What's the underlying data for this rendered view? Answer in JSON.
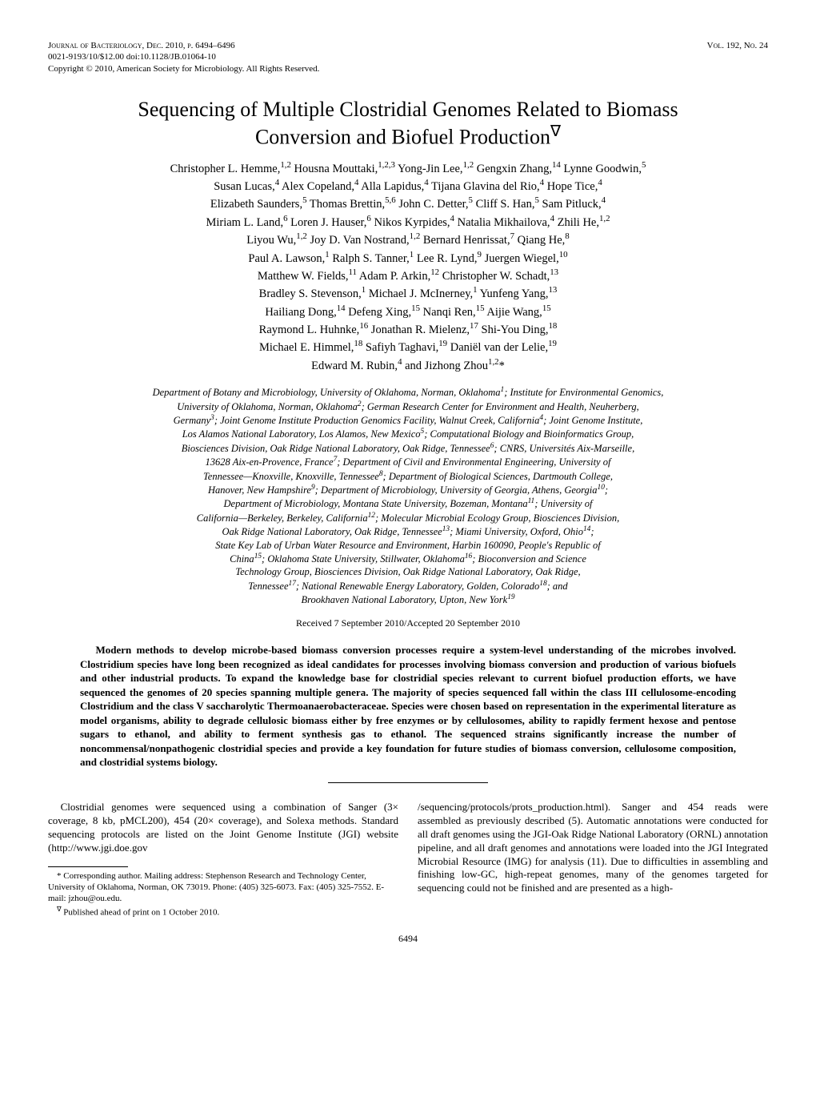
{
  "header": {
    "journal_line": "Journal of Bacteriology, Dec. 2010, p. 6494–6496",
    "vol_line": "Vol. 192, No. 24",
    "issn_doi": "0021-9193/10/$12.00   doi:10.1128/JB.01064-10",
    "copyright": "Copyright © 2010, American Society for Microbiology. All Rights Reserved."
  },
  "title_lines": {
    "l1": "Sequencing of Multiple Clostridial Genomes Related to Biomass",
    "l2": "Conversion and Biofuel Production",
    "nabla": "∇"
  },
  "authors_html": "Christopher L. Hemme,<sup>1,2</sup> Housna Mouttaki,<sup>1,2,3</sup> Yong-Jin Lee,<sup>1,2</sup> Gengxin Zhang,<sup>14</sup> Lynne Goodwin,<sup>5</sup><br>Susan Lucas,<sup>4</sup> Alex Copeland,<sup>4</sup> Alla Lapidus,<sup>4</sup> Tijana Glavina del Rio,<sup>4</sup> Hope Tice,<sup>4</sup><br>Elizabeth Saunders,<sup>5</sup> Thomas Brettin,<sup>5,6</sup> John C. Detter,<sup>5</sup> Cliff S. Han,<sup>5</sup> Sam Pitluck,<sup>4</sup><br>Miriam L. Land,<sup>6</sup> Loren J. Hauser,<sup>6</sup> Nikos Kyrpides,<sup>4</sup> Natalia Mikhailova,<sup>4</sup> Zhili He,<sup>1,2</sup><br>Liyou Wu,<sup>1,2</sup> Joy D. Van Nostrand,<sup>1,2</sup> Bernard Henrissat,<sup>7</sup> Qiang He,<sup>8</sup><br>Paul A. Lawson,<sup>1</sup> Ralph S. Tanner,<sup>1</sup> Lee R. Lynd,<sup>9</sup> Juergen Wiegel,<sup>10</sup><br>Matthew W. Fields,<sup>11</sup> Adam P. Arkin,<sup>12</sup> Christopher W. Schadt,<sup>13</sup><br>Bradley S. Stevenson,<sup>1</sup> Michael J. McInerney,<sup>1</sup> Yunfeng Yang,<sup>13</sup><br>Hailiang Dong,<sup>14</sup> Defeng Xing,<sup>15</sup> Nanqi Ren,<sup>15</sup> Aijie Wang,<sup>15</sup><br>Raymond L. Huhnke,<sup>16</sup> Jonathan R. Mielenz,<sup>17</sup> Shi-You Ding,<sup>18</sup><br>Michael E. Himmel,<sup>18</sup> Safiyh Taghavi,<sup>19</sup> Daniël van der Lelie,<sup>19</sup><br>Edward M. Rubin,<sup>4</sup> and Jizhong Zhou<sup>1,2</sup>*",
  "affiliations_html": "Department of Botany and Microbiology, University of Oklahoma, Norman, Oklahoma<sup>1</sup>; Institute for Environmental Genomics,<br>University of Oklahoma, Norman, Oklahoma<sup>2</sup>; German Research Center for Environment and Health, Neuherberg,<br>Germany<sup>3</sup>; Joint Genome Institute Production Genomics Facility, Walnut Creek, California<sup>4</sup>; Joint Genome Institute,<br>Los Alamos National Laboratory, Los Alamos, New Mexico<sup>5</sup>; Computational Biology and Bioinformatics Group,<br>Biosciences Division, Oak Ridge National Laboratory, Oak Ridge, Tennessee<sup>6</sup>; CNRS, Universités Aix-Marseille,<br>13628 Aix-en-Provence, France<sup>7</sup>; Department of Civil and Environmental Engineering, University of<br>Tennessee—Knoxville, Knoxville, Tennessee<sup>8</sup>; Department of Biological Sciences, Dartmouth College,<br>Hanover, New Hampshire<sup>9</sup>; Department of Microbiology, University of Georgia, Athens, Georgia<sup>10</sup>;<br>Department of Microbiology, Montana State University, Bozeman, Montana<sup>11</sup>; University of<br>California—Berkeley, Berkeley, California<sup>12</sup>; Molecular Microbial Ecology Group, Biosciences Division,<br>Oak Ridge National Laboratory, Oak Ridge, Tennessee<sup>13</sup>; Miami University, Oxford, Ohio<sup>14</sup>;<br>State Key Lab of Urban Water Resource and Environment, Harbin 160090, People's Republic of<br>China<sup>15</sup>; Oklahoma State University, Stillwater, Oklahoma<sup>16</sup>; Bioconversion and Science<br>Technology Group, Biosciences Division, Oak Ridge National Laboratory, Oak Ridge,<br>Tennessee<sup>17</sup>; National Renewable Energy Laboratory, Golden, Colorado<sup>18</sup>; and<br>Brookhaven National Laboratory, Upton, New York<sup>19</sup>",
  "received": "Received 7 September 2010/Accepted 20 September 2010",
  "abstract": "Modern methods to develop microbe-based biomass conversion processes require a system-level understanding of the microbes involved. Clostridium species have long been recognized as ideal candidates for processes involving biomass conversion and production of various biofuels and other industrial products. To expand the knowledge base for clostridial species relevant to current biofuel production efforts, we have sequenced the genomes of 20 species spanning multiple genera. The majority of species sequenced fall within the class III cellulosome-encoding Clostridium and the class V saccharolytic Thermoanaerobacteraceae. Species were chosen based on representation in the experimental literature as model organisms, ability to degrade cellulosic biomass either by free enzymes or by cellulosomes, ability to rapidly ferment hexose and pentose sugars to ethanol, and ability to ferment synthesis gas to ethanol. The sequenced strains significantly increase the number of noncommensal/nonpathogenic clostridial species and provide a key foundation for future studies of biomass conversion, cellulosome composition, and clostridial systems biology.",
  "body": {
    "left": "Clostridial genomes were sequenced using a combination of Sanger (3× coverage, 8 kb, pMCL200), 454 (20× coverage), and Solexa methods. Standard sequencing protocols are listed on the Joint Genome Institute (JGI) website (http://www.jgi.doe.gov",
    "right": "/sequencing/protocols/prots_production.html). Sanger and 454 reads were assembled as previously described (5). Automatic annotations were conducted for all draft genomes using the JGI-Oak Ridge National Laboratory (ORNL) annotation pipeline, and all draft genomes and annotations were loaded into the JGI Integrated Microbial Resource (IMG) for analysis (11). Due to difficulties in assembling and finishing low-GC, high-repeat genomes, many of the genomes targeted for sequencing could not be finished and are presented as a high-"
  },
  "footnotes": {
    "corr": "* Corresponding author. Mailing address: Stephenson Research and Technology Center, University of Oklahoma, Norman, OK 73019. Phone: (405) 325-6073. Fax: (405) 325-7552. E-mail: jzhou@ou.edu.",
    "pub": "Published ahead of print on 1 October 2010.",
    "nabla": "∇"
  },
  "page_number": "6494"
}
